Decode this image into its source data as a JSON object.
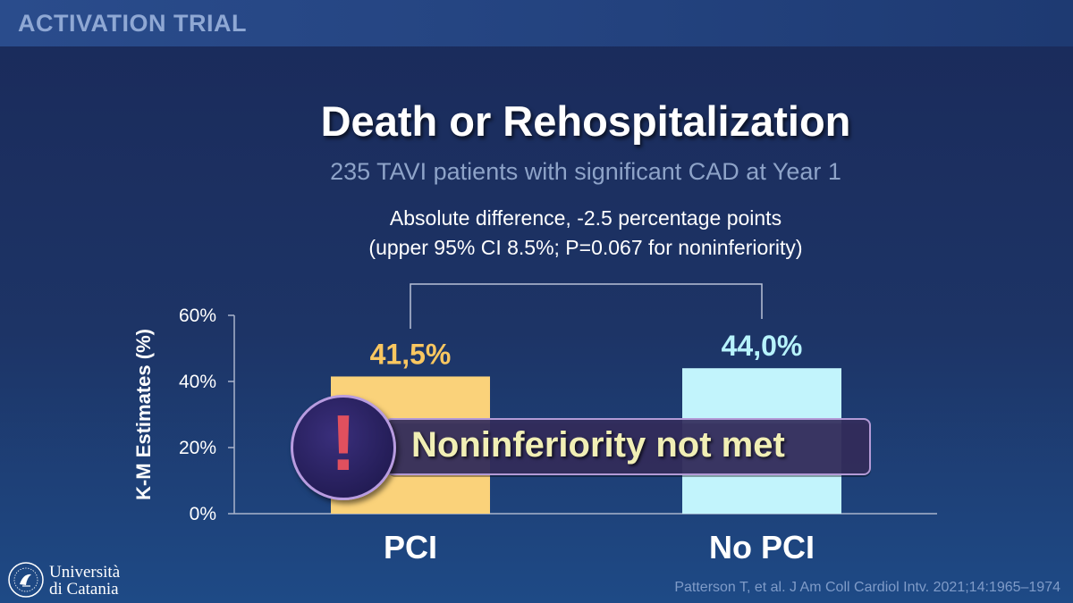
{
  "header": {
    "title": "ACTIVATION TRIAL"
  },
  "slide": {
    "title": "Death or Rehospitalization",
    "subtitle": "235 TAVI patients with significant CAD at Year 1",
    "difference_line1": "Absolute difference, -2.5 percentage points",
    "difference_line2": "(upper 95% CI 8.5%; P=0.067 for noninferiority)"
  },
  "banner": {
    "text": "Noninferiority not met",
    "alert_symbol": "!"
  },
  "chart_data": {
    "type": "bar",
    "categories": [
      "PCI",
      "No PCI"
    ],
    "values": [
      41.5,
      44.0
    ],
    "value_labels": [
      "41,5%",
      "44,0%"
    ],
    "bar_colors": [
      "#fad27a",
      "#c2f4fc"
    ],
    "label_colors": [
      "#f9c760",
      "#b7f3fb"
    ],
    "ylabel": "K-M Estimates (%)",
    "ylim": [
      0,
      60
    ],
    "yticks": [
      0,
      20,
      40,
      60
    ],
    "ytick_labels": [
      "0%",
      "20%",
      "40%",
      "60%"
    ],
    "comparison_bracket": true
  },
  "footer": {
    "logo_line1": "Università",
    "logo_line2": "di Catania",
    "citation": "Patterson T, et al. J Am Coll Cardiol Intv. 2021;14:1965–1974"
  },
  "colors": {
    "axis": "#aab4cc",
    "alert_red": "#e0505e",
    "banner_text": "#f1efb5"
  }
}
